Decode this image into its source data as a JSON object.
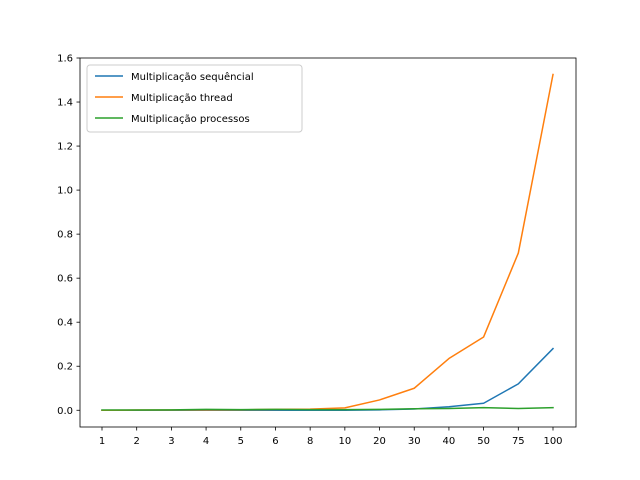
{
  "chart_data": {
    "type": "line",
    "categories": [
      "1",
      "2",
      "3",
      "4",
      "5",
      "6",
      "8",
      "10",
      "20",
      "30",
      "40",
      "50",
      "75",
      "100"
    ],
    "series": [
      {
        "name": "Multiplicação sequêncial",
        "color": "#1f77b4",
        "values": [
          0.0,
          0.0,
          0.0,
          0.0,
          0.0,
          0.0,
          0.0,
          0.0,
          0.002,
          0.006,
          0.016,
          0.032,
          0.12,
          0.28
        ]
      },
      {
        "name": "Multiplicação thread",
        "color": "#ff7f0e",
        "values": [
          0.0,
          0.001,
          0.001,
          0.002,
          0.002,
          0.004,
          0.005,
          0.011,
          0.047,
          0.1,
          0.235,
          0.333,
          0.714,
          1.525
        ]
      },
      {
        "name": "Multiplicação processos",
        "color": "#2ca02c",
        "values": [
          0.001,
          0.001,
          0.002,
          0.004,
          0.003,
          0.004,
          0.003,
          0.003,
          0.004,
          0.007,
          0.008,
          0.012,
          0.008,
          0.012
        ]
      }
    ],
    "yticks": [
      "0.0",
      "0.2",
      "0.4",
      "0.6",
      "0.8",
      "1.0",
      "1.2",
      "1.4",
      "1.6"
    ],
    "ylim": [
      -0.076,
      1.6
    ],
    "legend_position": "upper-left",
    "grid": false,
    "title": "",
    "xlabel": "",
    "ylabel": ""
  }
}
